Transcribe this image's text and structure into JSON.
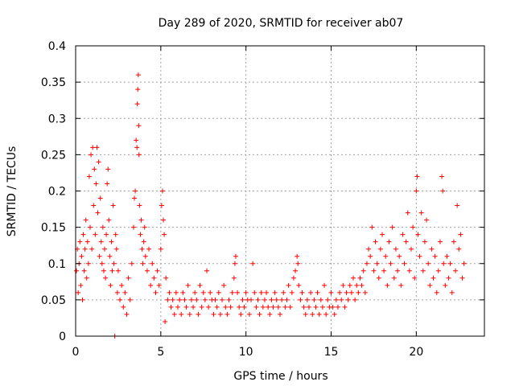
{
  "chart_data": {
    "type": "scatter",
    "title": "Day 289 of 2020, SRMTID for receiver ab07",
    "xlabel": "GPS time / hours",
    "ylabel": "SRMTID / TECUs",
    "xlim": [
      0,
      24
    ],
    "ylim": [
      0,
      0.4
    ],
    "xticks": [
      0,
      5,
      10,
      15,
      20
    ],
    "xtick_labels": [
      "0",
      "5",
      "10",
      "15",
      "20"
    ],
    "yticks": [
      0,
      0.05,
      0.1,
      0.15,
      0.2,
      0.25,
      0.3,
      0.35,
      0.4
    ],
    "ytick_labels": [
      "0",
      "0.05",
      "0.1",
      "0.15",
      "0.2",
      "0.25",
      "0.3",
      "0.35",
      "0.4"
    ],
    "grid": true,
    "marker": "plus",
    "color": "#ff0000",
    "series": [
      {
        "name": "SRMTID",
        "points": [
          [
            0.05,
            0.09
          ],
          [
            0.1,
            0.12
          ],
          [
            0.15,
            0.06
          ],
          [
            0.2,
            0.1
          ],
          [
            0.25,
            0.13
          ],
          [
            0.3,
            0.07
          ],
          [
            0.35,
            0.11
          ],
          [
            0.4,
            0.05
          ],
          [
            0.45,
            0.14
          ],
          [
            0.5,
            0.09
          ],
          [
            0.55,
            0.12
          ],
          [
            0.6,
            0.16
          ],
          [
            0.65,
            0.08
          ],
          [
            0.7,
            0.13
          ],
          [
            0.75,
            0.1
          ],
          [
            0.8,
            0.22
          ],
          [
            0.85,
            0.15
          ],
          [
            0.9,
            0.25
          ],
          [
            0.95,
            0.12
          ],
          [
            1.0,
            0.26
          ],
          [
            1.05,
            0.18
          ],
          [
            1.1,
            0.23
          ],
          [
            1.15,
            0.14
          ],
          [
            1.2,
            0.21
          ],
          [
            1.25,
            0.26
          ],
          [
            1.3,
            0.17
          ],
          [
            1.35,
            0.24
          ],
          [
            1.4,
            0.11
          ],
          [
            1.45,
            0.19
          ],
          [
            1.5,
            0.13
          ],
          [
            1.55,
            0.1
          ],
          [
            1.6,
            0.15
          ],
          [
            1.65,
            0.09
          ],
          [
            1.7,
            0.12
          ],
          [
            1.75,
            0.08
          ],
          [
            1.8,
            0.14
          ],
          [
            1.85,
            0.21
          ],
          [
            1.9,
            0.23
          ],
          [
            1.95,
            0.16
          ],
          [
            2.0,
            0.11
          ],
          [
            2.05,
            0.07
          ],
          [
            2.1,
            0.13
          ],
          [
            2.15,
            0.09
          ],
          [
            2.2,
            0.18
          ],
          [
            2.25,
            0.1
          ],
          [
            2.3,
            0.0
          ],
          [
            2.35,
            0.14
          ],
          [
            2.4,
            0.12
          ],
          [
            2.45,
            0.06
          ],
          [
            2.5,
            0.09
          ],
          [
            2.6,
            0.05
          ],
          [
            2.7,
            0.07
          ],
          [
            2.8,
            0.04
          ],
          [
            2.9,
            0.06
          ],
          [
            3.0,
            0.03
          ],
          [
            3.1,
            0.08
          ],
          [
            3.2,
            0.05
          ],
          [
            3.3,
            0.1
          ],
          [
            3.4,
            0.15
          ],
          [
            3.45,
            0.19
          ],
          [
            3.5,
            0.2
          ],
          [
            3.55,
            0.27
          ],
          [
            3.6,
            0.26
          ],
          [
            3.62,
            0.32
          ],
          [
            3.65,
            0.34
          ],
          [
            3.68,
            0.36
          ],
          [
            3.7,
            0.29
          ],
          [
            3.72,
            0.25
          ],
          [
            3.75,
            0.18
          ],
          [
            3.8,
            0.14
          ],
          [
            3.85,
            0.16
          ],
          [
            3.9,
            0.12
          ],
          [
            3.95,
            0.1
          ],
          [
            4.0,
            0.13
          ],
          [
            4.05,
            0.15
          ],
          [
            4.1,
            0.11
          ],
          [
            4.2,
            0.09
          ],
          [
            4.3,
            0.12
          ],
          [
            4.4,
            0.07
          ],
          [
            4.5,
            0.1
          ],
          [
            4.6,
            0.08
          ],
          [
            4.7,
            0.06
          ],
          [
            4.8,
            0.09
          ],
          [
            4.9,
            0.07
          ],
          [
            5.0,
            0.12
          ],
          [
            5.05,
            0.18
          ],
          [
            5.1,
            0.2
          ],
          [
            5.15,
            0.16
          ],
          [
            5.2,
            0.14
          ],
          [
            5.25,
            0.02
          ],
          [
            5.3,
            0.08
          ],
          [
            5.4,
            0.05
          ],
          [
            5.5,
            0.06
          ],
          [
            5.6,
            0.04
          ],
          [
            5.7,
            0.05
          ],
          [
            5.8,
            0.03
          ],
          [
            5.9,
            0.06
          ],
          [
            6.0,
            0.04
          ],
          [
            6.1,
            0.05
          ],
          [
            6.2,
            0.03
          ],
          [
            6.3,
            0.06
          ],
          [
            6.4,
            0.05
          ],
          [
            6.5,
            0.04
          ],
          [
            6.6,
            0.07
          ],
          [
            6.7,
            0.03
          ],
          [
            6.8,
            0.05
          ],
          [
            6.9,
            0.04
          ],
          [
            7.0,
            0.06
          ],
          [
            7.1,
            0.05
          ],
          [
            7.2,
            0.03
          ],
          [
            7.3,
            0.07
          ],
          [
            7.4,
            0.04
          ],
          [
            7.5,
            0.06
          ],
          [
            7.6,
            0.05
          ],
          [
            7.7,
            0.09
          ],
          [
            7.8,
            0.04
          ],
          [
            7.9,
            0.06
          ],
          [
            8.0,
            0.05
          ],
          [
            8.1,
            0.03
          ],
          [
            8.2,
            0.05
          ],
          [
            8.3,
            0.04
          ],
          [
            8.4,
            0.06
          ],
          [
            8.5,
            0.03
          ],
          [
            8.6,
            0.05
          ],
          [
            8.7,
            0.07
          ],
          [
            8.8,
            0.04
          ],
          [
            8.9,
            0.03
          ],
          [
            9.0,
            0.05
          ],
          [
            9.1,
            0.04
          ],
          [
            9.2,
            0.06
          ],
          [
            9.3,
            0.08
          ],
          [
            9.35,
            0.1
          ],
          [
            9.4,
            0.11
          ],
          [
            9.5,
            0.06
          ],
          [
            9.6,
            0.04
          ],
          [
            9.7,
            0.03
          ],
          [
            9.8,
            0.05
          ],
          [
            9.9,
            0.04
          ],
          [
            10.0,
            0.06
          ],
          [
            10.1,
            0.05
          ],
          [
            10.2,
            0.03
          ],
          [
            10.3,
            0.05
          ],
          [
            10.4,
            0.1
          ],
          [
            10.5,
            0.06
          ],
          [
            10.6,
            0.04
          ],
          [
            10.7,
            0.05
          ],
          [
            10.8,
            0.03
          ],
          [
            10.9,
            0.06
          ],
          [
            11.0,
            0.04
          ],
          [
            11.1,
            0.05
          ],
          [
            11.2,
            0.06
          ],
          [
            11.3,
            0.04
          ],
          [
            11.4,
            0.03
          ],
          [
            11.5,
            0.05
          ],
          [
            11.6,
            0.04
          ],
          [
            11.7,
            0.06
          ],
          [
            11.8,
            0.05
          ],
          [
            11.9,
            0.04
          ],
          [
            12.0,
            0.03
          ],
          [
            12.1,
            0.05
          ],
          [
            12.2,
            0.06
          ],
          [
            12.3,
            0.04
          ],
          [
            12.4,
            0.05
          ],
          [
            12.5,
            0.07
          ],
          [
            12.6,
            0.04
          ],
          [
            12.7,
            0.06
          ],
          [
            12.8,
            0.08
          ],
          [
            12.9,
            0.09
          ],
          [
            13.0,
            0.11
          ],
          [
            13.05,
            0.1
          ],
          [
            13.1,
            0.07
          ],
          [
            13.2,
            0.05
          ],
          [
            13.3,
            0.06
          ],
          [
            13.4,
            0.04
          ],
          [
            13.5,
            0.03
          ],
          [
            13.6,
            0.05
          ],
          [
            13.7,
            0.04
          ],
          [
            13.8,
            0.06
          ],
          [
            13.9,
            0.03
          ],
          [
            14.0,
            0.05
          ],
          [
            14.1,
            0.04
          ],
          [
            14.2,
            0.06
          ],
          [
            14.3,
            0.03
          ],
          [
            14.4,
            0.05
          ],
          [
            14.5,
            0.04
          ],
          [
            14.6,
            0.07
          ],
          [
            14.7,
            0.03
          ],
          [
            14.8,
            0.05
          ],
          [
            14.9,
            0.04
          ],
          [
            15.0,
            0.06
          ],
          [
            15.1,
            0.04
          ],
          [
            15.2,
            0.03
          ],
          [
            15.3,
            0.05
          ],
          [
            15.4,
            0.04
          ],
          [
            15.5,
            0.06
          ],
          [
            15.6,
            0.05
          ],
          [
            15.7,
            0.07
          ],
          [
            15.8,
            0.04
          ],
          [
            15.9,
            0.06
          ],
          [
            16.0,
            0.05
          ],
          [
            16.1,
            0.07
          ],
          [
            16.2,
            0.06
          ],
          [
            16.3,
            0.08
          ],
          [
            16.4,
            0.05
          ],
          [
            16.5,
            0.07
          ],
          [
            16.6,
            0.06
          ],
          [
            16.7,
            0.08
          ],
          [
            16.8,
            0.07
          ],
          [
            16.9,
            0.09
          ],
          [
            17.0,
            0.06
          ],
          [
            17.1,
            0.1
          ],
          [
            17.2,
            0.12
          ],
          [
            17.3,
            0.11
          ],
          [
            17.4,
            0.15
          ],
          [
            17.5,
            0.09
          ],
          [
            17.6,
            0.13
          ],
          [
            17.7,
            0.1
          ],
          [
            17.8,
            0.08
          ],
          [
            17.9,
            0.12
          ],
          [
            18.0,
            0.14
          ],
          [
            18.1,
            0.09
          ],
          [
            18.2,
            0.11
          ],
          [
            18.3,
            0.07
          ],
          [
            18.4,
            0.13
          ],
          [
            18.5,
            0.1
          ],
          [
            18.6,
            0.15
          ],
          [
            18.7,
            0.08
          ],
          [
            18.8,
            0.12
          ],
          [
            18.9,
            0.09
          ],
          [
            19.0,
            0.11
          ],
          [
            19.1,
            0.07
          ],
          [
            19.2,
            0.14
          ],
          [
            19.3,
            0.1
          ],
          [
            19.4,
            0.13
          ],
          [
            19.5,
            0.17
          ],
          [
            19.6,
            0.09
          ],
          [
            19.7,
            0.12
          ],
          [
            19.8,
            0.15
          ],
          [
            19.9,
            0.08
          ],
          [
            20.0,
            0.2
          ],
          [
            20.05,
            0.22
          ],
          [
            20.1,
            0.14
          ],
          [
            20.2,
            0.11
          ],
          [
            20.3,
            0.17
          ],
          [
            20.4,
            0.09
          ],
          [
            20.5,
            0.13
          ],
          [
            20.6,
            0.16
          ],
          [
            20.7,
            0.1
          ],
          [
            20.8,
            0.07
          ],
          [
            20.9,
            0.12
          ],
          [
            21.0,
            0.08
          ],
          [
            21.1,
            0.11
          ],
          [
            21.2,
            0.06
          ],
          [
            21.3,
            0.09
          ],
          [
            21.4,
            0.13
          ],
          [
            21.5,
            0.22
          ],
          [
            21.55,
            0.2
          ],
          [
            21.6,
            0.1
          ],
          [
            21.7,
            0.07
          ],
          [
            21.8,
            0.11
          ],
          [
            21.9,
            0.08
          ],
          [
            22.0,
            0.1
          ],
          [
            22.1,
            0.06
          ],
          [
            22.2,
            0.13
          ],
          [
            22.3,
            0.09
          ],
          [
            22.4,
            0.18
          ],
          [
            22.5,
            0.12
          ],
          [
            22.6,
            0.14
          ],
          [
            22.7,
            0.08
          ],
          [
            22.8,
            0.1
          ]
        ]
      }
    ]
  }
}
